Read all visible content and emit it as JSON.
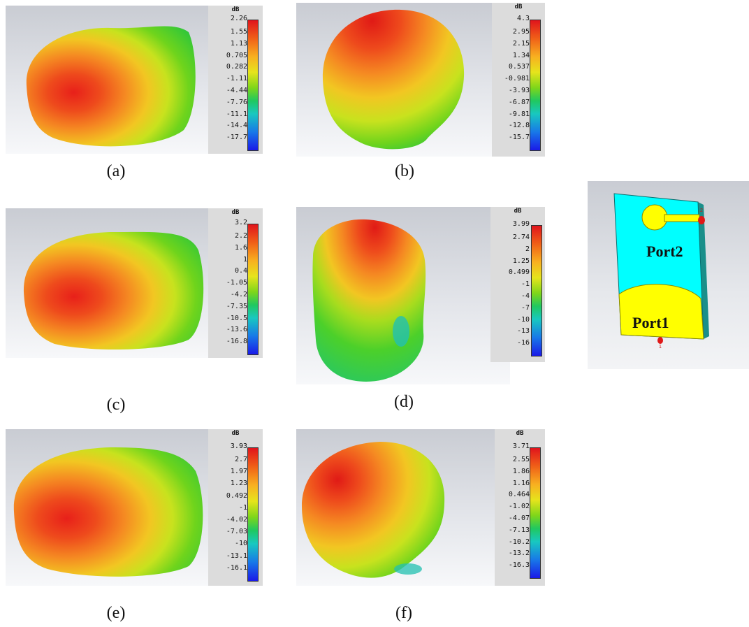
{
  "colors": {
    "viewport_top": "#c9ccd3",
    "viewport_bottom": "#f7f8fa",
    "colorbar_bg": "#dcdcdc",
    "substrate": "#00ffff",
    "patch": "#ffff00",
    "port_marker": "#e01818"
  },
  "panels": [
    {
      "caption": "(a)",
      "unit": "dB",
      "ticks": [
        "2.26",
        "1.55",
        "1.13",
        "0.705",
        "0.282",
        "-1.11",
        "-4.44",
        "-7.76",
        "-11.1",
        "-14.4",
        "-17.7"
      ]
    },
    {
      "caption": "(b)",
      "unit": "dB",
      "ticks": [
        "4.3",
        "2.95",
        "2.15",
        "1.34",
        "0.537",
        "-0.981",
        "-3.93",
        "-6.87",
        "-9.81",
        "-12.8",
        "-15.7"
      ]
    },
    {
      "caption": "(c)",
      "unit": "dB",
      "ticks": [
        "3.2",
        "2.2",
        "1.6",
        "1",
        "0.4",
        "-1.05",
        "-4.2",
        "-7.35",
        "-10.5",
        "-13.6",
        "-16.8"
      ]
    },
    {
      "caption": "(d)",
      "unit": "dB",
      "ticks": [
        "3.99",
        "2.74",
        "2",
        "1.25",
        "0.499",
        "-1",
        "-4",
        "-7",
        "-10",
        "-13",
        "-16"
      ]
    },
    {
      "caption": "(e)",
      "unit": "dB",
      "ticks": [
        "3.93",
        "2.7",
        "1.97",
        "1.23",
        "0.492",
        "-1",
        "-4.02",
        "-7.03",
        "-10",
        "-13.1",
        "-16.1"
      ]
    },
    {
      "caption": "(f)",
      "unit": "dB",
      "ticks": [
        "3.71",
        "2.55",
        "1.86",
        "1.16",
        "0.464",
        "-1.02",
        "-4.07",
        "-7.13",
        "-10.2",
        "-13.2",
        "-16.3"
      ]
    }
  ],
  "antenna": {
    "port2_label": "Port2",
    "port1_label": "Port1"
  }
}
